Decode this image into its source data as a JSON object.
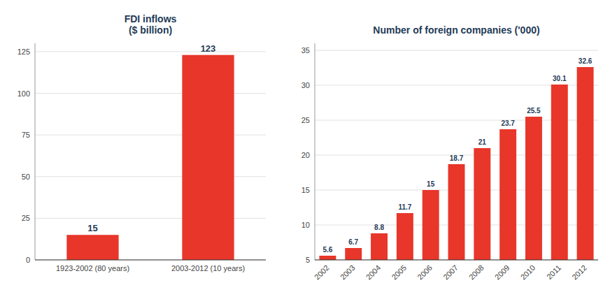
{
  "chart_data": [
    {
      "type": "bar",
      "title": "FDI inflows\n($ billion)",
      "categories": [
        "1923-2002 (80 years)",
        "2003-2012 (10 years)"
      ],
      "values": [
        15,
        123
      ],
      "color": "#E8362A",
      "ylim": [
        0,
        130
      ],
      "yticks": [
        0,
        25,
        50,
        75,
        100,
        125
      ],
      "grid": true,
      "data_labels": true
    },
    {
      "type": "bar",
      "title": "Number of foreign companies ('000)",
      "categories": [
        "2002",
        "2003",
        "2004",
        "2005",
        "2006",
        "2007",
        "2008",
        "2009",
        "2010",
        "2011",
        "2012"
      ],
      "values": [
        5.6,
        6.7,
        8.8,
        11.7,
        15,
        18.7,
        21,
        23.7,
        25.5,
        30.1,
        32.6
      ],
      "color": "#E8362A",
      "ylim": [
        5,
        36
      ],
      "yticks": [
        5,
        10,
        15,
        20,
        25,
        30,
        35
      ],
      "grid": true,
      "data_labels": true
    }
  ]
}
